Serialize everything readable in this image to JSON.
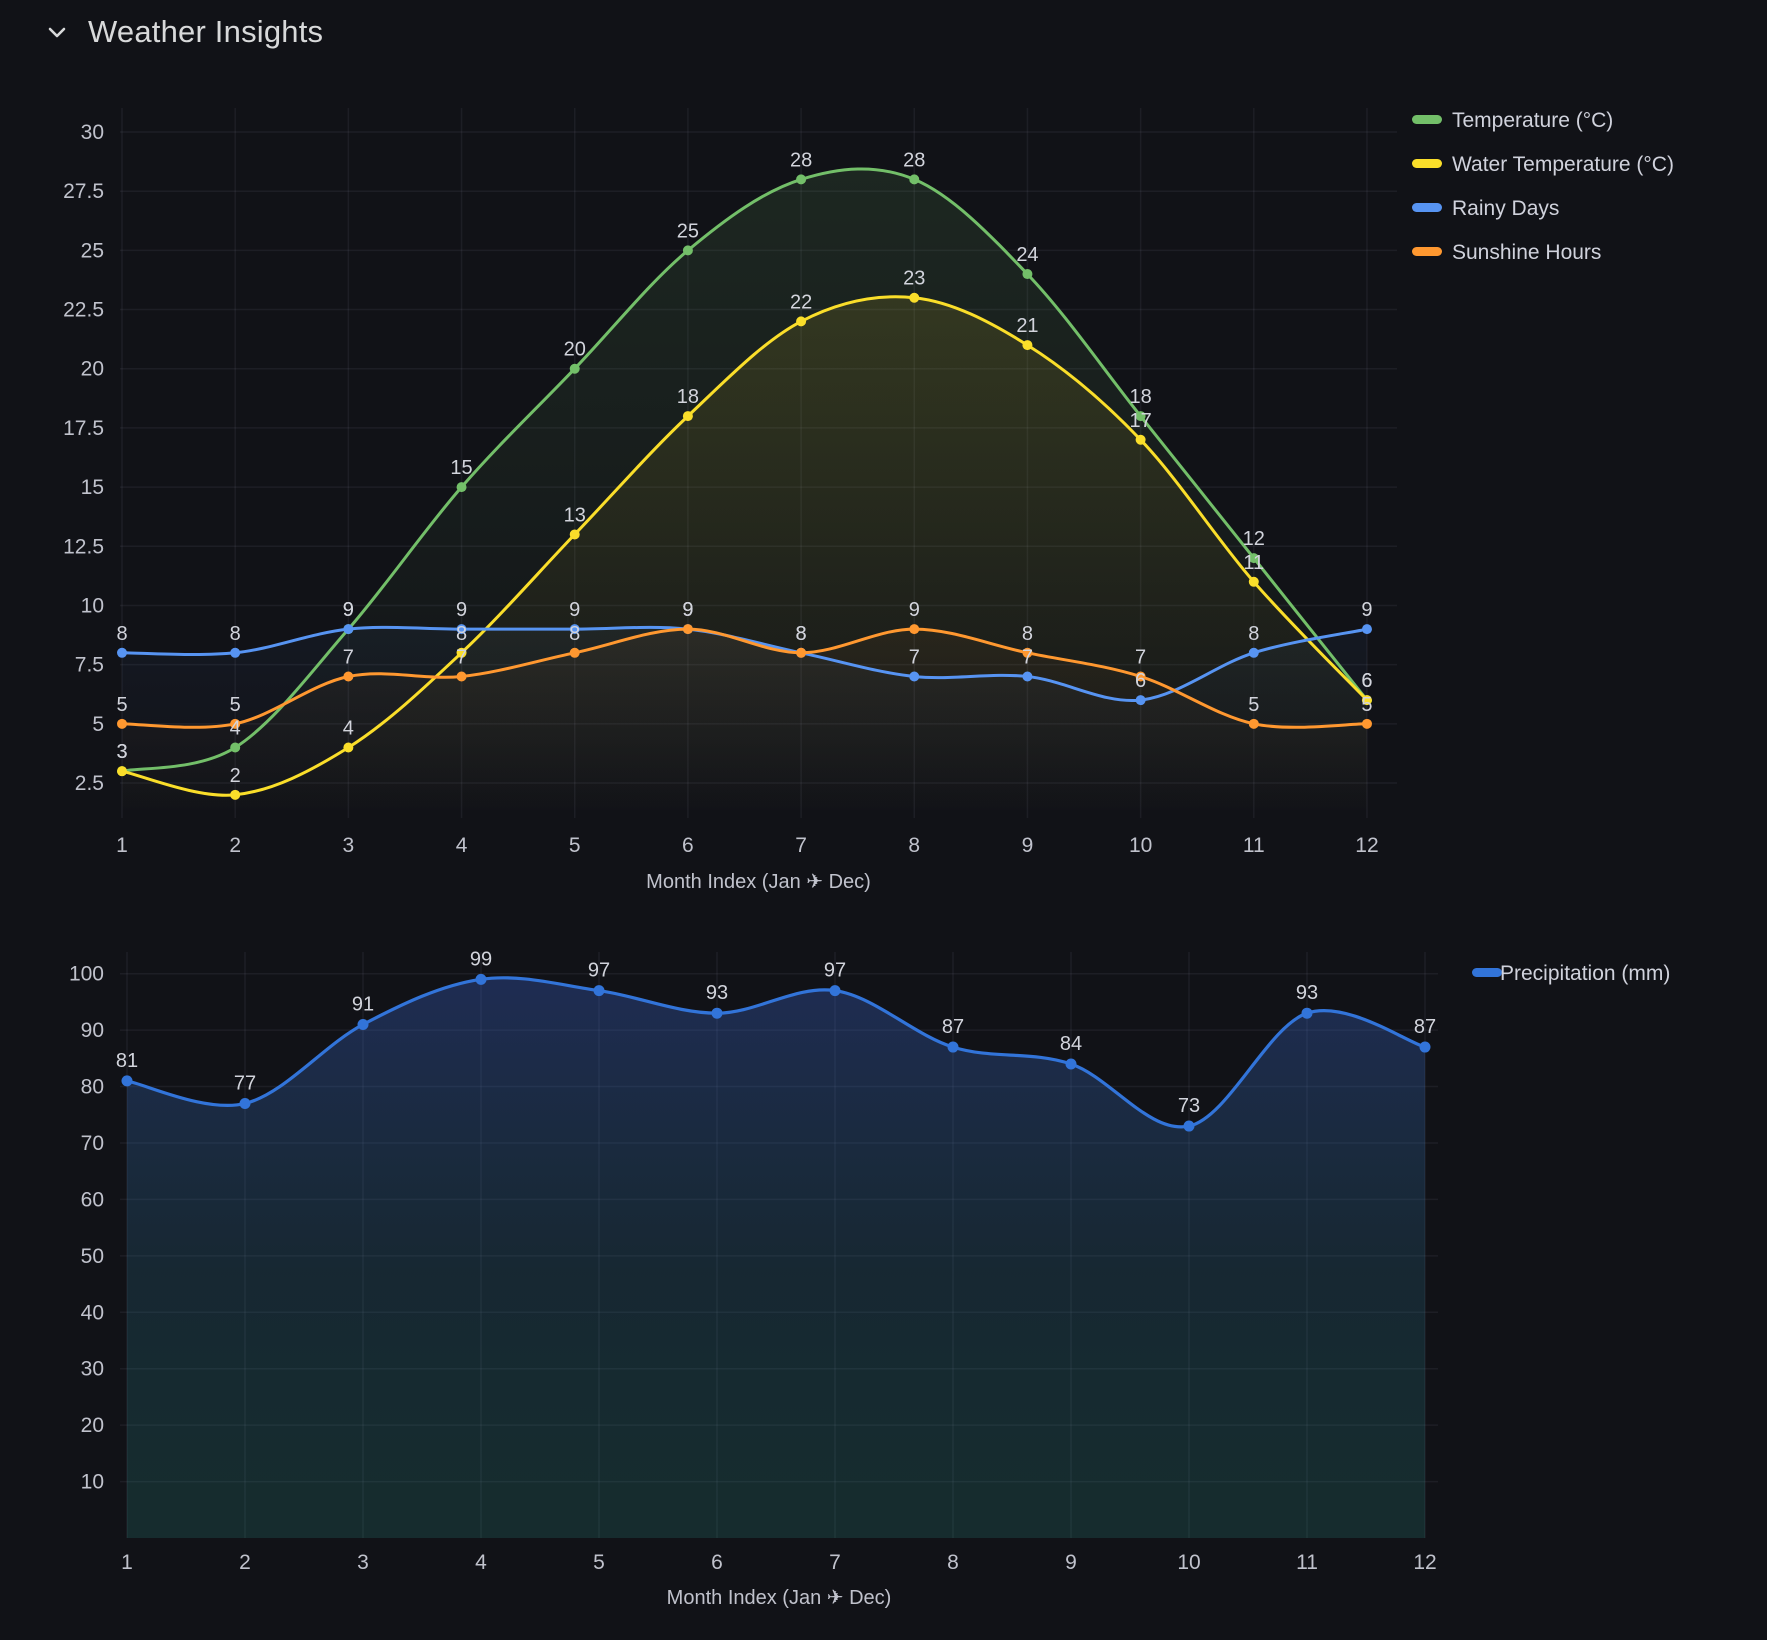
{
  "panel": {
    "title": "Weather Insights",
    "collapse_icon": "chevron-down"
  },
  "colors": {
    "background": "#111217",
    "grid": "rgba(204,204,220,0.07)",
    "tick_label": "#c0c2cc",
    "data_label": "#d2d4dc",
    "legend_text": "#d0d2dc",
    "title_text": "#d8d9da",
    "temperature": "#73BF69",
    "water_temperature": "#FADE2A",
    "rainy_days": "#5794F2",
    "sunshine_hours": "#FF9830",
    "precipitation": "#3274D9"
  },
  "chart_data": [
    {
      "type": "line",
      "title": "",
      "x": [
        1,
        2,
        3,
        4,
        5,
        6,
        7,
        8,
        9,
        10,
        11,
        12
      ],
      "xlabel": "Month Index (Jan ✈ Dec)",
      "ylabel": "",
      "yticks": [
        2.5,
        5,
        7.5,
        10,
        12.5,
        15,
        17.5,
        20,
        22.5,
        25,
        27.5,
        30
      ],
      "ylim": [
        1,
        31
      ],
      "grid": true,
      "legend_position": "right-top",
      "value_labels": true,
      "series": [
        {
          "name": "Temperature (°C)",
          "color": "#73BF69",
          "values": [
            3,
            4,
            9,
            15,
            20,
            25,
            28,
            28,
            24,
            18,
            12,
            6
          ]
        },
        {
          "name": "Water Temperature (°C)",
          "color": "#FADE2A",
          "values": [
            3,
            2,
            4,
            8,
            13,
            18,
            22,
            23,
            21,
            17,
            11,
            6
          ]
        },
        {
          "name": "Rainy Days",
          "color": "#5794F2",
          "values": [
            8,
            8,
            9,
            9,
            9,
            9,
            8,
            7,
            7,
            6,
            8,
            9
          ]
        },
        {
          "name": "Sunshine Hours",
          "color": "#FF9830",
          "values": [
            5,
            5,
            7,
            7,
            8,
            9,
            8,
            9,
            8,
            7,
            5,
            5
          ]
        }
      ]
    },
    {
      "type": "area",
      "title": "",
      "x": [
        1,
        2,
        3,
        4,
        5,
        6,
        7,
        8,
        9,
        10,
        11,
        12
      ],
      "xlabel": "Month Index (Jan ✈ Dec)",
      "ylabel": "",
      "yticks": [
        10,
        20,
        30,
        40,
        50,
        60,
        70,
        80,
        90,
        100
      ],
      "ylim": [
        0,
        104
      ],
      "grid": true,
      "legend_position": "right-top",
      "value_labels": true,
      "series": [
        {
          "name": "Precipitation (mm)",
          "color": "#3274D9",
          "values": [
            81,
            77,
            91,
            99,
            97,
            93,
            97,
            87,
            84,
            73,
            93,
            87
          ]
        }
      ]
    }
  ]
}
